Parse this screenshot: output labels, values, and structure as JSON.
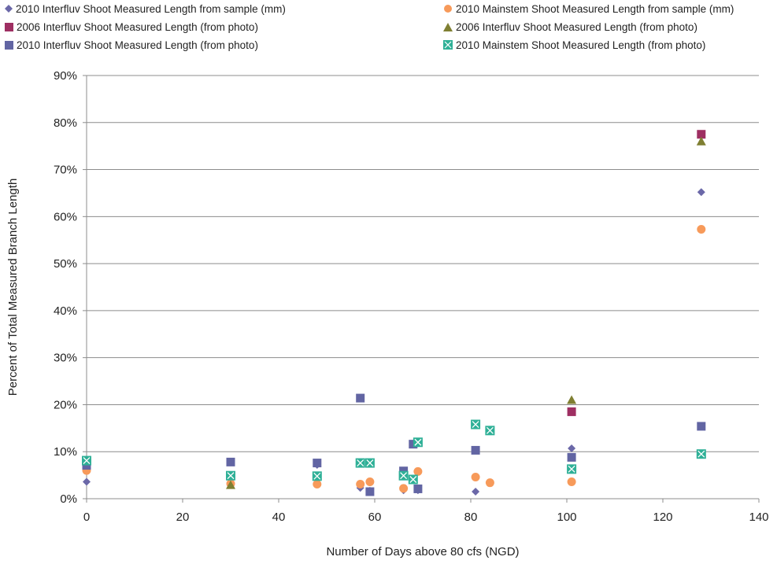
{
  "chart_data": {
    "type": "scatter",
    "xlabel": "Number of Days above 80 cfs (NGD)",
    "ylabel": "Percent of Total Measured Branch Length",
    "xlim": [
      0,
      140
    ],
    "ylim": [
      0,
      90
    ],
    "x_ticks": [
      "0",
      "20",
      "40",
      "60",
      "80",
      "100",
      "120",
      "140"
    ],
    "y_ticks": [
      "0%",
      "10%",
      "20%",
      "30%",
      "40%",
      "50%",
      "60%",
      "70%",
      "80%",
      "90%"
    ],
    "grid": "horizontal",
    "legend_position": "top",
    "series": [
      {
        "name": "2010 Interfluv Shoot Measured Length from sample (mm)",
        "marker": "diamond",
        "color": "#6b68a8",
        "points": [
          [
            0,
            3.6
          ],
          [
            30,
            4.1
          ],
          [
            48,
            7.2
          ],
          [
            57,
            2.3
          ],
          [
            59,
            1.7
          ],
          [
            66,
            1.8
          ],
          [
            69,
            1.8
          ],
          [
            81,
            1.5
          ],
          [
            101,
            10.7
          ],
          [
            128,
            65.2
          ]
        ]
      },
      {
        "name": "2010 Mainstem Shoot Measured Length from sample (mm)",
        "marker": "circle",
        "color": "#f79a5a",
        "points": [
          [
            0,
            6.0
          ],
          [
            30,
            3.2
          ],
          [
            48,
            3.1
          ],
          [
            57,
            3.1
          ],
          [
            59,
            3.6
          ],
          [
            66,
            2.2
          ],
          [
            69,
            5.8
          ],
          [
            81,
            4.6
          ],
          [
            84,
            3.4
          ],
          [
            101,
            3.6
          ],
          [
            128,
            57.3
          ]
        ]
      },
      {
        "name": "2006 Interfluv Shoot Measured Length (from photo)",
        "marker": "square",
        "color": "#9e2f62",
        "points": [
          [
            101,
            18.5
          ],
          [
            128,
            77.5
          ]
        ]
      },
      {
        "name": "2006 Interfluv Shoot Measured Length (from photo)",
        "marker": "triangle",
        "color": "#7f7f32",
        "points": [
          [
            30,
            2.9
          ],
          [
            101,
            21.0
          ],
          [
            128,
            76.0
          ]
        ]
      },
      {
        "name": "2010 Interfluv Shoot Measured Length (from photo)",
        "marker": "square",
        "color": "#6265a3",
        "points": [
          [
            0,
            7.1
          ],
          [
            30,
            7.8
          ],
          [
            48,
            7.6
          ],
          [
            57,
            21.4
          ],
          [
            59,
            1.5
          ],
          [
            66,
            5.9
          ],
          [
            68,
            11.6
          ],
          [
            69,
            2.1
          ],
          [
            81,
            10.3
          ],
          [
            101,
            8.8
          ],
          [
            128,
            15.4
          ]
        ]
      },
      {
        "name": "2010 Mainstem Shoot Measured Length (from photo)",
        "marker": "x-square",
        "color": "#2fb097",
        "points": [
          [
            0,
            8.1
          ],
          [
            30,
            4.9
          ],
          [
            48,
            4.8
          ],
          [
            57,
            7.6
          ],
          [
            59,
            7.6
          ],
          [
            66,
            4.9
          ],
          [
            68,
            4.1
          ],
          [
            69,
            12.0
          ],
          [
            81,
            15.8
          ],
          [
            84,
            14.5
          ],
          [
            101,
            6.3
          ],
          [
            128,
            9.5
          ]
        ]
      }
    ]
  }
}
